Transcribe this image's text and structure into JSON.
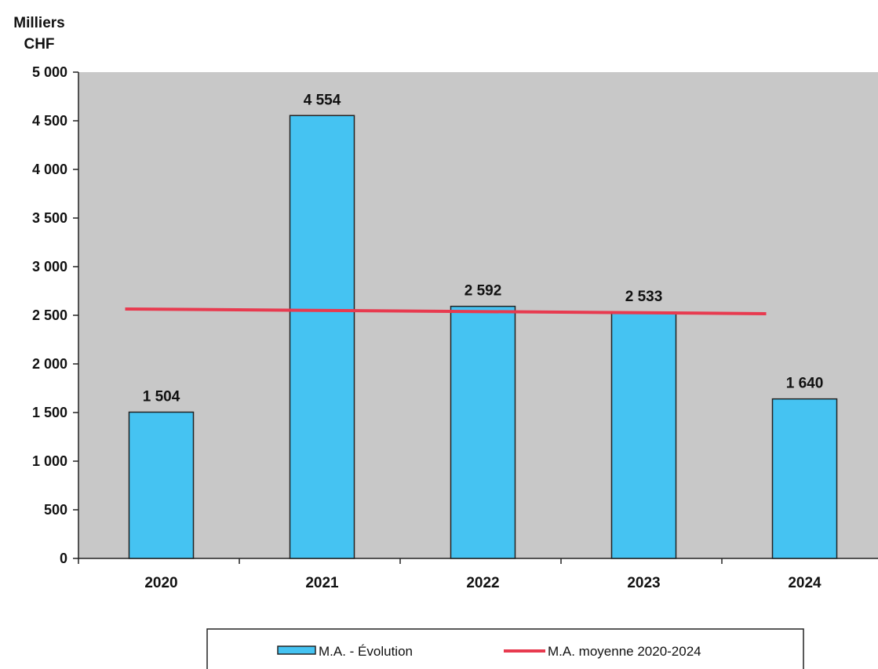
{
  "chart_data": {
    "type": "bar",
    "unit_label_line1": "Milliers",
    "unit_label_line2": "CHF",
    "categories": [
      "2020",
      "2021",
      "2022",
      "2023",
      "2024"
    ],
    "series": [
      {
        "name": "M.A. - Évolution",
        "type": "bar",
        "values": [
          1504,
          4554,
          2592,
          2533,
          1640
        ],
        "value_labels": [
          "1 504",
          "4 554",
          "2 592",
          "2 533",
          "1 640"
        ],
        "color": "#45c3f2"
      },
      {
        "name": "M.A. moyenne 2020-2024",
        "type": "line",
        "values": [
          2565,
          2565,
          2565,
          2565,
          2565
        ],
        "color": "#e83a4f"
      }
    ],
    "ylim": [
      0,
      5000
    ],
    "yticks": [
      0,
      500,
      1000,
      1500,
      2000,
      2500,
      3000,
      3500,
      4000,
      4500,
      5000
    ],
    "ytick_labels": [
      "0",
      "500",
      "1 000",
      "1 500",
      "2 000",
      "2 500",
      "3 000",
      "3 500",
      "4 000",
      "4 500",
      "5 000"
    ],
    "grid": false,
    "legend_position": "bottom",
    "plot_background": "#c8c8c8"
  }
}
